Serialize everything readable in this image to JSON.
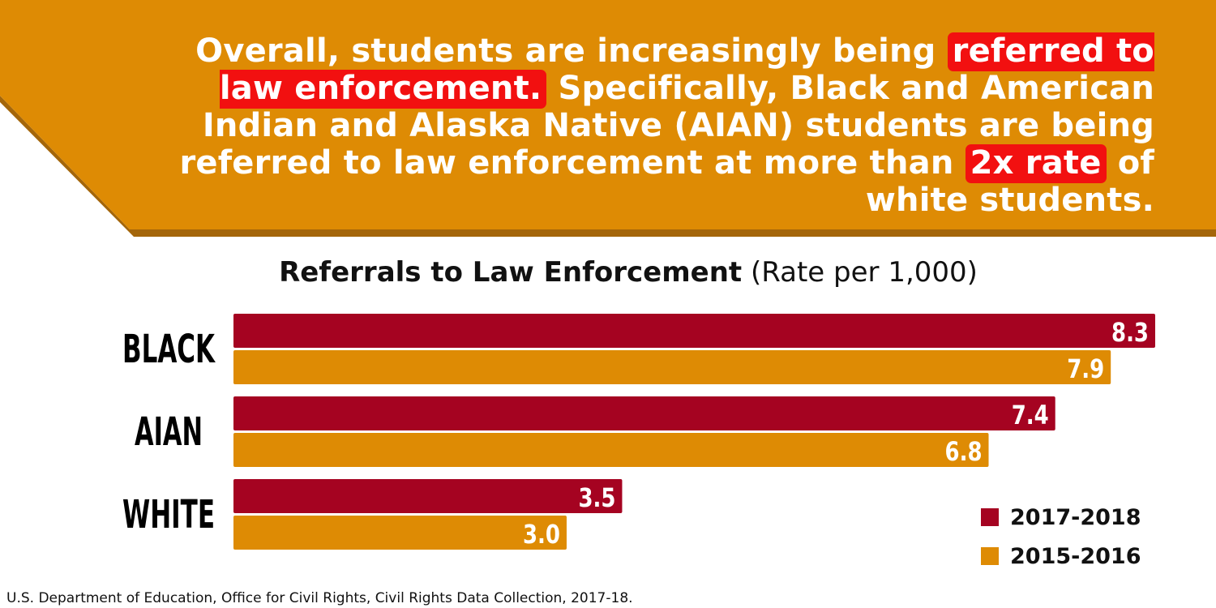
{
  "colors": {
    "banner": "#de8b04",
    "banner_shadow": "#a4660a",
    "highlight": "#f21010",
    "series_2017_2018": "#a50321",
    "series_2015_2016": "#de8b04"
  },
  "headline": {
    "part1": "Overall, students are increasingly being ",
    "highlight1": "referred to law enforcement.",
    "part2": " Specifically, Black and American Indian and Alaska Native (AIAN) students are being referred to law enforcement at more than ",
    "highlight2": "2x rate",
    "part3": " of white students."
  },
  "chart_data": {
    "type": "bar",
    "orientation": "horizontal",
    "title": "Referrals to Law Enforcement",
    "subtitle": "(Rate per 1,000)",
    "categories": [
      "BLACK",
      "AIAN",
      "WHITE"
    ],
    "series": [
      {
        "name": "2017-2018",
        "color": "#a50321",
        "values": [
          8.3,
          7.4,
          3.5
        ],
        "labels": [
          "8.3",
          "7.4",
          "3.5"
        ]
      },
      {
        "name": "2015-2016",
        "color": "#de8b04",
        "values": [
          7.9,
          6.8,
          3.0
        ],
        "labels": [
          "7.9",
          "6.8",
          "3.0"
        ]
      }
    ],
    "xlim": [
      0,
      8.3
    ],
    "grid": false,
    "legend_position": "bottom-right"
  },
  "source": "U.S. Department of Education, Office for Civil Rights, Civil Rights Data Collection, 2017-18."
}
